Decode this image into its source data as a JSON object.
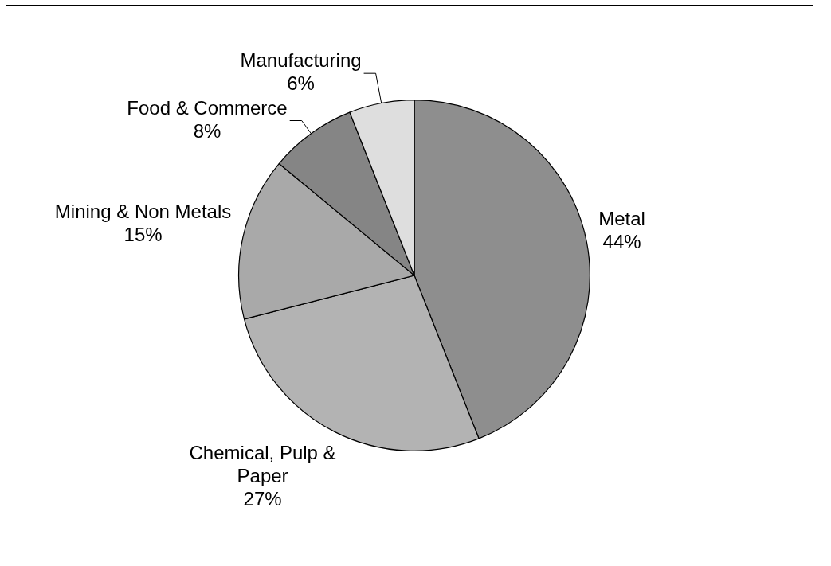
{
  "chart_data": {
    "type": "pie",
    "categories": [
      "Metal",
      "Chemical, Pulp & Paper",
      "Mining & Non Metals",
      "Food & Commerce",
      "Manufacturing"
    ],
    "values": [
      44,
      27,
      15,
      8,
      6
    ],
    "colors": [
      "#8e8e8e",
      "#b3b3b3",
      "#a9a9a9",
      "#858585",
      "#dedede"
    ],
    "value_labels": [
      "44%",
      "27%",
      "15%",
      "8%",
      "6%"
    ]
  }
}
